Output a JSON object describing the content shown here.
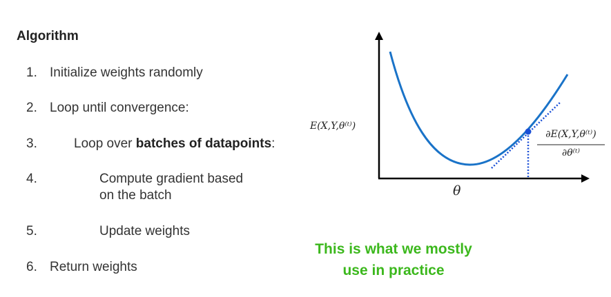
{
  "title": "Algorithm",
  "steps": [
    {
      "num": "1.",
      "text": "Initialize weights randomly"
    },
    {
      "num": "2.",
      "text": "Loop until convergence:"
    },
    {
      "num": "3.",
      "text_before": "Loop over ",
      "text_bold": "batches of datapoints",
      "text_after": ":"
    },
    {
      "num": "4.",
      "line1": "Compute gradient based",
      "line2": "on the batch"
    },
    {
      "num": "5.",
      "text": "Update weights"
    },
    {
      "num": "6.",
      "text": "Return weights"
    }
  ],
  "diagram": {
    "y_label": "E(X,Y,θ⁽ᵗ⁾)",
    "x_label": "θ",
    "gradient_numerator": "∂E(X,Y,θ⁽ᵗ⁾)",
    "gradient_denominator": "∂θ⁽ᵗ⁾",
    "curve_color": "#1a73c8",
    "axis_color": "#000000"
  },
  "callout": {
    "line1": "This is what we mostly",
    "line2": "use in practice",
    "color": "#3cb81d"
  }
}
